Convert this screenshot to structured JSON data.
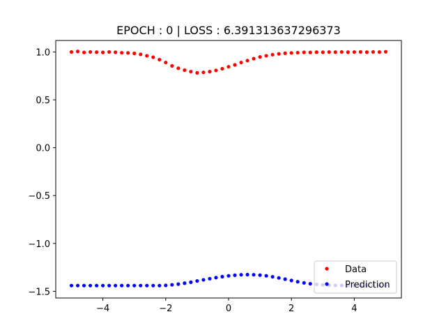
{
  "chart_data": {
    "type": "scatter",
    "title": "EPOCH : 0 | LOSS : 6.391313637296373",
    "xlabel": "",
    "ylabel": "",
    "xlim": [
      -5.5,
      5.5
    ],
    "ylim": [
      -1.57,
      1.12
    ],
    "xticks": [
      {
        "value": -4,
        "label": "−4"
      },
      {
        "value": -2,
        "label": "−2"
      },
      {
        "value": 0,
        "label": "0"
      },
      {
        "value": 2,
        "label": "2"
      },
      {
        "value": 4,
        "label": "4"
      }
    ],
    "yticks": [
      {
        "value": 1.0,
        "label": "1.0"
      },
      {
        "value": 0.5,
        "label": "0.5"
      },
      {
        "value": 0.0,
        "label": "0.0"
      },
      {
        "value": -0.5,
        "label": "−0.5"
      },
      {
        "value": -1.0,
        "label": "−1.0"
      },
      {
        "value": -1.5,
        "label": "−1.5"
      }
    ],
    "grid": false,
    "legend": "lower-right",
    "series": [
      {
        "name": "Data",
        "color": "#ff0000",
        "marker": "dot",
        "x": [
          -5.0,
          -4.8,
          -4.6,
          -4.4,
          -4.2,
          -4.0,
          -3.8,
          -3.6,
          -3.4,
          -3.2,
          -3.0,
          -2.8,
          -2.6,
          -2.4,
          -2.2,
          -2.0,
          -1.8,
          -1.6,
          -1.4,
          -1.2,
          -1.0,
          -0.8,
          -0.6,
          -0.4,
          -0.2,
          0.0,
          0.2,
          0.4,
          0.6,
          0.8,
          1.0,
          1.2,
          1.4,
          1.6,
          1.8,
          2.0,
          2.2,
          2.4,
          2.6,
          2.8,
          3.0,
          3.2,
          3.4,
          3.6,
          3.8,
          4.0,
          4.2,
          4.4,
          4.6,
          4.8,
          5.0
        ],
        "y": [
          1.0,
          1.005,
          0.995,
          1.0,
          0.998,
          0.995,
          1.0,
          0.997,
          0.992,
          0.99,
          0.985,
          0.975,
          0.96,
          0.945,
          0.92,
          0.89,
          0.855,
          0.83,
          0.81,
          0.795,
          0.782,
          0.787,
          0.795,
          0.808,
          0.825,
          0.845,
          0.865,
          0.89,
          0.91,
          0.93,
          0.948,
          0.96,
          0.972,
          0.98,
          0.987,
          0.99,
          0.993,
          0.996,
          0.995,
          0.998,
          0.997,
          0.999,
          0.998,
          1.0,
          0.998,
          0.999,
          1.0,
          0.998,
          1.0,
          0.999,
          1.002
        ]
      },
      {
        "name": "Prediction",
        "color": "#0000ff",
        "marker": "dot",
        "x": [
          -5.0,
          -4.8,
          -4.6,
          -4.4,
          -4.2,
          -4.0,
          -3.8,
          -3.6,
          -3.4,
          -3.2,
          -3.0,
          -2.8,
          -2.6,
          -2.4,
          -2.2,
          -2.0,
          -1.8,
          -1.6,
          -1.4,
          -1.2,
          -1.0,
          -0.8,
          -0.6,
          -0.4,
          -0.2,
          0.0,
          0.2,
          0.4,
          0.6,
          0.8,
          1.0,
          1.2,
          1.4,
          1.6,
          1.8,
          2.0,
          2.2,
          2.4,
          2.6,
          2.8,
          3.0,
          3.2,
          3.4,
          3.6,
          3.8,
          4.0,
          4.2,
          4.4,
          4.6,
          4.8,
          5.0
        ],
        "y": [
          -1.44,
          -1.44,
          -1.44,
          -1.44,
          -1.44,
          -1.44,
          -1.44,
          -1.44,
          -1.44,
          -1.44,
          -1.44,
          -1.44,
          -1.44,
          -1.44,
          -1.44,
          -1.438,
          -1.432,
          -1.425,
          -1.415,
          -1.405,
          -1.392,
          -1.38,
          -1.368,
          -1.357,
          -1.347,
          -1.338,
          -1.332,
          -1.327,
          -1.326,
          -1.327,
          -1.331,
          -1.338,
          -1.348,
          -1.36,
          -1.373,
          -1.387,
          -1.4,
          -1.412,
          -1.421,
          -1.428,
          -1.433,
          -1.436,
          -1.438,
          -1.439,
          -1.44,
          -1.44,
          -1.44,
          -1.44,
          -1.44,
          -1.44,
          -1.44
        ]
      }
    ]
  }
}
